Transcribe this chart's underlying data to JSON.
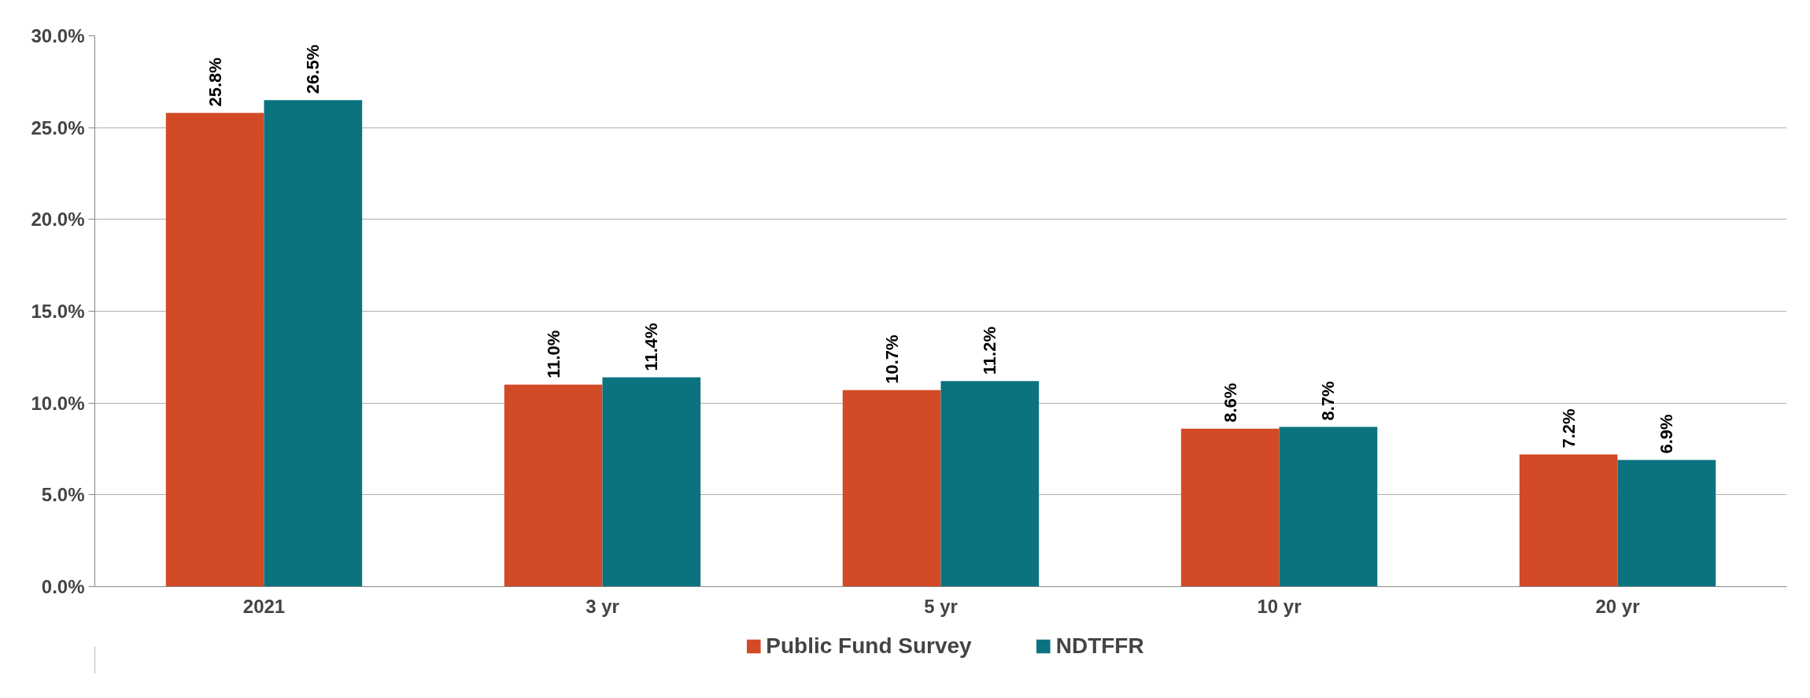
{
  "chart_data": {
    "type": "bar",
    "categories": [
      "2021",
      "3 yr",
      "5 yr",
      "10 yr",
      "20 yr"
    ],
    "series": [
      {
        "name": "Public Fund Survey",
        "color": "#d34a26",
        "values": [
          25.8,
          11.0,
          10.7,
          8.6,
          7.2
        ],
        "value_labels": [
          "25.8%",
          "11.0%",
          "10.7%",
          "8.6%",
          "7.2%"
        ]
      },
      {
        "name": "NDTFFR",
        "color": "#0b7380",
        "values": [
          26.5,
          11.4,
          11.2,
          8.7,
          6.9
        ],
        "value_labels": [
          "26.5%",
          "11.4%",
          "11.2%",
          "8.7%",
          "6.9%"
        ]
      }
    ],
    "ylim": [
      0,
      30
    ],
    "yticks": [
      {
        "value": 0,
        "label": "0.0%"
      },
      {
        "value": 5,
        "label": "5.0%"
      },
      {
        "value": 10,
        "label": "10.0%"
      },
      {
        "value": 15,
        "label": "15.0%"
      },
      {
        "value": 20,
        "label": "20.0%"
      },
      {
        "value": 25,
        "label": "25.0%"
      },
      {
        "value": 30,
        "label": "30.0%"
      }
    ],
    "grid": "y",
    "legend": "bottom"
  }
}
